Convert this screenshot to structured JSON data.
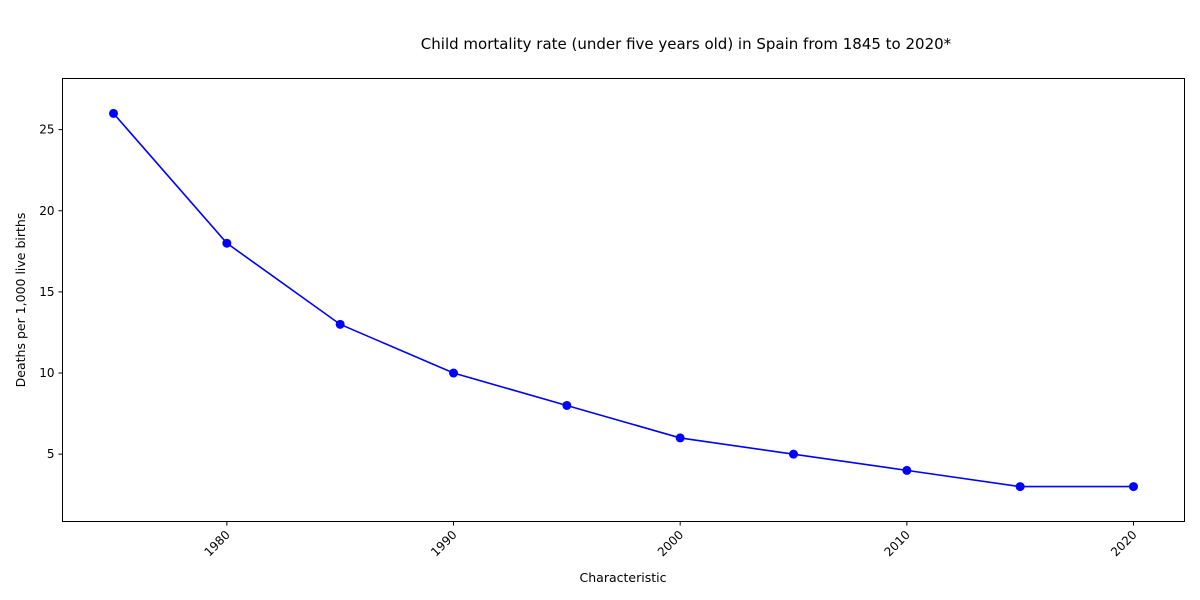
{
  "chart_data": {
    "type": "line",
    "title": "Child mortality rate (under five years old) in Spain from 1845 to 2020*",
    "xlabel": "Characteristic",
    "ylabel": "Deaths per 1,000 live births",
    "x": [
      1975,
      1980,
      1985,
      1990,
      1995,
      2000,
      2005,
      2010,
      2015,
      2020
    ],
    "series": [
      {
        "values": [
          26,
          18,
          13,
          10,
          8,
          6,
          5,
          4,
          3,
          3
        ]
      }
    ],
    "xlim": [
      1972.75,
      2022.25
    ],
    "ylim": [
      0.85,
      28.15
    ],
    "xticks": [
      1980,
      1990,
      2000,
      2010,
      2020
    ],
    "yticks": [
      5,
      10,
      15,
      20,
      25
    ],
    "grid": false,
    "line_color": "#0000ff",
    "marker_color": "#0000ff"
  }
}
